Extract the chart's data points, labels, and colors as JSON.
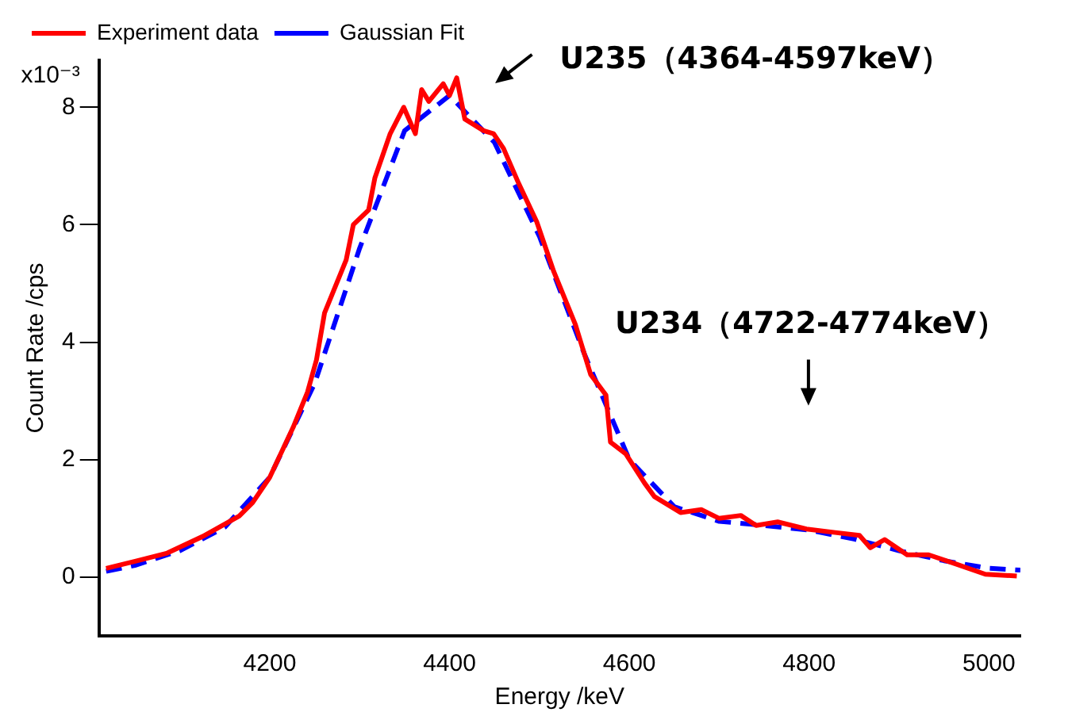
{
  "chart_data": {
    "type": "line",
    "xlabel": "Energy /keV",
    "ylabel": "Count Rate /cps",
    "xlim": [
      4010,
      5035
    ],
    "xticks": [
      4200,
      4400,
      4600,
      4800,
      5000
    ],
    "ylim": [
      -1,
      8.8
    ],
    "yticks": [
      0,
      2,
      4,
      6,
      8
    ],
    "grid": false,
    "legend": "top left",
    "marker": "none",
    "series": [
      {
        "name": "Experiment data",
        "color": "#ff0000",
        "line_style": "solid",
        "x": [
          4018,
          4053,
          4086,
          4125,
          4166,
          4181,
          4200,
          4226,
          4242,
          4252,
          4261,
          4285,
          4293,
          4310,
          4317,
          4334,
          4349,
          4362,
          4369,
          4377,
          4393,
          4400,
          4408,
          4417,
          4438,
          4449,
          4460,
          4477,
          4497,
          4516,
          4540,
          4557,
          4574,
          4579,
          4596,
          4617,
          4628,
          4657,
          4680,
          4700,
          4724,
          4741,
          4765,
          4797,
          4829,
          4856,
          4868,
          4884,
          4909,
          4933,
          4964,
          4996,
          5031
        ],
        "values": [
          0.15,
          0.28,
          0.41,
          0.69,
          1.04,
          1.27,
          1.7,
          2.55,
          3.15,
          3.7,
          4.5,
          5.4,
          6.0,
          6.25,
          6.8,
          7.55,
          8.0,
          7.55,
          8.3,
          8.1,
          8.4,
          8.2,
          8.5,
          7.8,
          7.6,
          7.55,
          7.3,
          6.7,
          6.05,
          5.2,
          4.3,
          3.45,
          3.1,
          2.3,
          2.1,
          1.6,
          1.37,
          1.1,
          1.15,
          1.0,
          1.05,
          0.88,
          0.94,
          0.82,
          0.76,
          0.71,
          0.5,
          0.64,
          0.38,
          0.38,
          0.22,
          0.05,
          0.02
        ]
      },
      {
        "name": "Gaussian Fit",
        "color": "#0000ff",
        "line_style": "dashed",
        "x": [
          4018,
          4050,
          4100,
          4150,
          4200,
          4250,
          4300,
          4350,
          4400,
          4450,
          4500,
          4550,
          4600,
          4650,
          4700,
          4750,
          4800,
          4850,
          4900,
          4950,
          5000,
          5035
        ],
        "values": [
          0.1,
          0.2,
          0.45,
          0.85,
          1.7,
          3.3,
          5.6,
          7.6,
          8.2,
          7.4,
          5.8,
          3.8,
          2.0,
          1.2,
          0.95,
          0.88,
          0.8,
          0.65,
          0.45,
          0.28,
          0.15,
          0.12
        ]
      }
    ],
    "annotations": [
      "U235（4364-4597keV）",
      "U234（4722-4774keV）",
      "x10⁻³"
    ]
  }
}
